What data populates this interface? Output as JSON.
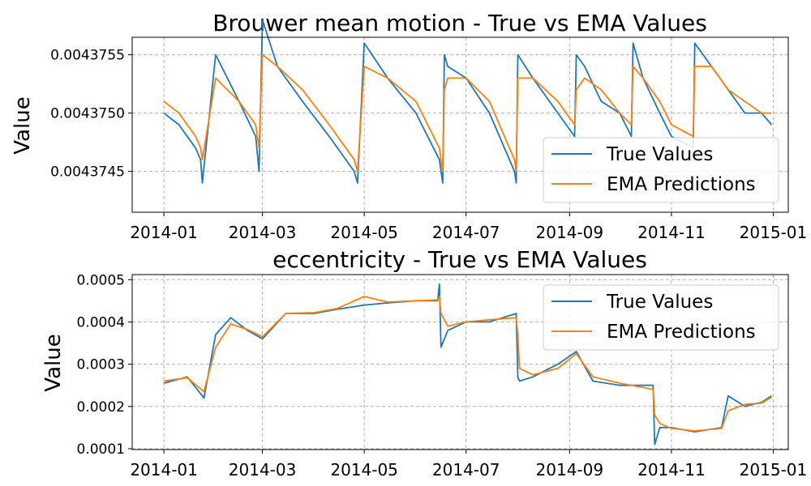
{
  "colors": {
    "true_values": "#1f77b4",
    "ema": "#ff7f0e"
  },
  "chart_data": [
    {
      "type": "line",
      "title": "Brouwer mean motion - True vs EMA Values",
      "xlabel": "",
      "ylabel": "Value",
      "x_ticks": [
        "2014-01",
        "2014-03",
        "2014-05",
        "2014-07",
        "2014-09",
        "2014-11",
        "2015-01"
      ],
      "y_ticks": [
        "0.0043745",
        "0.0043750",
        "0.0043755"
      ],
      "y_tick_values": [
        0.0043745,
        0.004375,
        0.0043755
      ],
      "ylim": [
        0.00437415,
        0.00437565
      ],
      "xlim": [
        "2013-12-13",
        "2015-01-10"
      ],
      "grid": true,
      "legend_position": "lower right",
      "legend": [
        "True Values",
        "EMA Predictions"
      ],
      "x": [
        "2014-01-01",
        "2014-01-10",
        "2014-01-20",
        "2014-01-23",
        "2014-01-24",
        "2014-02-01",
        "2014-02-15",
        "2014-02-25",
        "2014-02-27",
        "2014-03-01",
        "2014-03-10",
        "2014-03-25",
        "2014-04-10",
        "2014-04-25",
        "2014-04-27",
        "2014-05-01",
        "2014-05-15",
        "2014-06-01",
        "2014-06-15",
        "2014-06-17",
        "2014-06-18",
        "2014-06-20",
        "2014-07-01",
        "2014-07-15",
        "2014-07-30",
        "2014-07-31",
        "2014-08-01",
        "2014-08-10",
        "2014-08-25",
        "2014-09-04",
        "2014-09-05",
        "2014-09-10",
        "2014-09-20",
        "2014-10-01",
        "2014-10-08",
        "2014-10-09",
        "2014-10-15",
        "2014-10-25",
        "2014-11-01",
        "2014-11-14",
        "2014-11-15",
        "2014-11-25",
        "2014-12-05",
        "2014-12-15",
        "2014-12-25",
        "2014-12-31"
      ],
      "series": [
        {
          "name": "True Values",
          "values": [
            0.004375,
            0.0043749,
            0.0043747,
            0.0043746,
            0.0043744,
            0.0043755,
            0.0043751,
            0.0043748,
            0.0043745,
            0.0043758,
            0.0043754,
            0.0043751,
            0.0043748,
            0.0043745,
            0.0043744,
            0.0043756,
            0.0043753,
            0.004375,
            0.0043746,
            0.0043744,
            0.0043755,
            0.0043754,
            0.0043753,
            0.004375,
            0.0043745,
            0.0043744,
            0.0043755,
            0.0043753,
            0.004375,
            0.0043748,
            0.0043755,
            0.0043754,
            0.0043751,
            0.004375,
            0.0043748,
            0.0043756,
            0.0043753,
            0.004375,
            0.0043748,
            0.0043747,
            0.0043756,
            0.0043754,
            0.0043752,
            0.004375,
            0.004375,
            0.0043749
          ]
        },
        {
          "name": "EMA Predictions",
          "values": [
            0.0043751,
            0.004375,
            0.0043748,
            0.0043747,
            0.0043746,
            0.0043753,
            0.0043751,
            0.0043749,
            0.0043747,
            0.0043755,
            0.0043754,
            0.0043752,
            0.0043749,
            0.0043746,
            0.0043745,
            0.0043754,
            0.0043753,
            0.0043751,
            0.0043747,
            0.0043745,
            0.0043752,
            0.0043753,
            0.0043753,
            0.0043751,
            0.0043746,
            0.0043745,
            0.0043753,
            0.0043753,
            0.0043751,
            0.0043749,
            0.0043752,
            0.0043753,
            0.0043752,
            0.004375,
            0.0043749,
            0.0043754,
            0.0043753,
            0.0043751,
            0.0043749,
            0.0043748,
            0.0043754,
            0.0043754,
            0.0043752,
            0.0043751,
            0.004375,
            0.004375
          ]
        }
      ]
    },
    {
      "type": "line",
      "title": "eccentricity - True vs EMA Values",
      "xlabel": "",
      "ylabel": "Value",
      "x_ticks": [
        "2014-01",
        "2014-03",
        "2014-05",
        "2014-07",
        "2014-09",
        "2014-11",
        "2015-01"
      ],
      "y_ticks": [
        "0.0001",
        "0.0002",
        "0.0003",
        "0.0004",
        "0.0005"
      ],
      "y_tick_values": [
        0.0001,
        0.0002,
        0.0003,
        0.0004,
        0.0005
      ],
      "ylim": [
        9.8e-05,
        0.000512
      ],
      "xlim": [
        "2013-12-13",
        "2015-01-10"
      ],
      "grid": true,
      "legend_position": "upper right",
      "legend": [
        "True Values",
        "EMA Predictions"
      ],
      "x": [
        "2014-01-01",
        "2014-01-15",
        "2014-01-25",
        "2014-02-01",
        "2014-02-10",
        "2014-02-20",
        "2014-03-01",
        "2014-03-15",
        "2014-04-01",
        "2014-04-15",
        "2014-05-01",
        "2014-05-15",
        "2014-06-01",
        "2014-06-14",
        "2014-06-15",
        "2014-06-16",
        "2014-06-20",
        "2014-07-01",
        "2014-07-15",
        "2014-07-31",
        "2014-08-01",
        "2014-08-02",
        "2014-08-10",
        "2014-08-25",
        "2014-09-05",
        "2014-09-15",
        "2014-10-01",
        "2014-10-15",
        "2014-10-21",
        "2014-10-22",
        "2014-10-25",
        "2014-11-01",
        "2014-11-15",
        "2014-12-01",
        "2014-12-05",
        "2014-12-15",
        "2014-12-25",
        "2014-12-31"
      ],
      "series": [
        {
          "name": "True Values",
          "values": [
            0.000255,
            0.00027,
            0.00022,
            0.00037,
            0.00041,
            0.00038,
            0.00036,
            0.00042,
            0.00042,
            0.00043,
            0.00044,
            0.000445,
            0.00045,
            0.00045,
            0.00049,
            0.00034,
            0.00038,
            0.0004,
            0.0004,
            0.00042,
            0.00027,
            0.00026,
            0.00027,
            0.0003,
            0.00033,
            0.00026,
            0.00025,
            0.00025,
            0.00025,
            0.00011,
            0.00015,
            0.00015,
            0.00014,
            0.00015,
            0.000225,
            0.0002,
            0.00021,
            0.000225
          ]
        },
        {
          "name": "EMA Predictions",
          "values": [
            0.00026,
            0.000268,
            0.000235,
            0.00034,
            0.000395,
            0.000382,
            0.000365,
            0.00042,
            0.000422,
            0.000432,
            0.00046,
            0.000447,
            0.00045,
            0.000452,
            0.00046,
            0.00042,
            0.00039,
            0.0004,
            0.000405,
            0.00041,
            0.00037,
            0.00029,
            0.000275,
            0.00029,
            0.000325,
            0.00027,
            0.000255,
            0.000245,
            0.00024,
            0.00018,
            0.00016,
            0.000148,
            0.000142,
            0.000148,
            0.00019,
            0.000205,
            0.000208,
            0.000222
          ]
        }
      ]
    }
  ]
}
